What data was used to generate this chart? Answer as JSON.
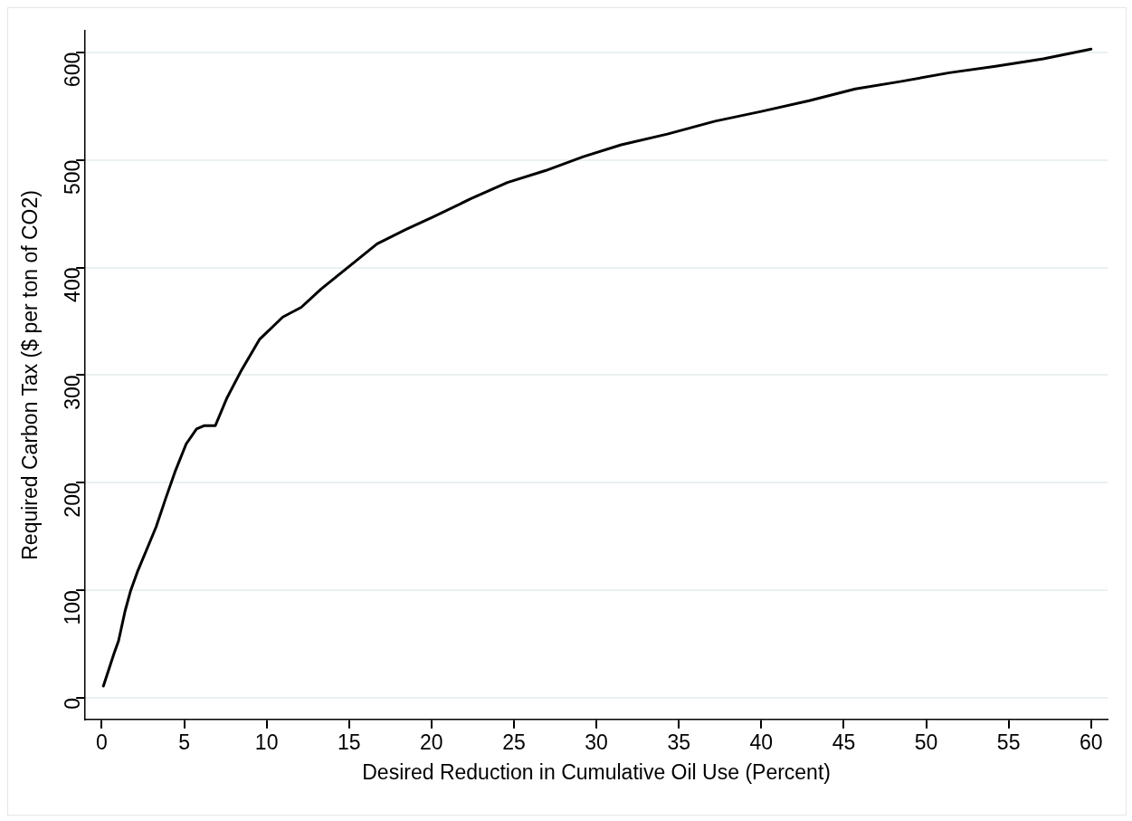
{
  "chart_data": {
    "type": "line",
    "xlabel": "Desired Reduction in Cumulative Oil Use (Percent)",
    "ylabel": "Required Carbon Tax ($ per ton of CO2)",
    "x": [
      0.1,
      0.74,
      1.02,
      1.42,
      1.76,
      2.16,
      2.73,
      3.3,
      3.87,
      4.44,
      5.12,
      5.75,
      6.2,
      6.89,
      7.57,
      8.42,
      9.56,
      10.98,
      12.1,
      13.3,
      15,
      16.7,
      18.4,
      20.1,
      22.4,
      24.6,
      26.9,
      29.2,
      31.5,
      34.3,
      37.2,
      40,
      42.9,
      45.7,
      48.5,
      51.4,
      54.2,
      57.1,
      60
    ],
    "series": [
      {
        "color": "#000000",
        "values": [
          11,
          41,
          53,
          81,
          100,
          117,
          138,
          159,
          185,
          210,
          236,
          250,
          253,
          253,
          278,
          303,
          333,
          354,
          363,
          380,
          401,
          422,
          435,
          447,
          464,
          479,
          490,
          503,
          514,
          524,
          536,
          545,
          555,
          566,
          573,
          581,
          587,
          594,
          603
        ]
      }
    ],
    "xlim": [
      -1,
      61
    ],
    "xticks": [
      0,
      5,
      10,
      15,
      20,
      25,
      30,
      35,
      40,
      45,
      50,
      55,
      60
    ],
    "ylim": [
      -20,
      620
    ],
    "yticks": [
      0,
      100,
      200,
      300,
      400,
      500,
      600
    ],
    "grid": "y",
    "legend": false,
    "marker": "none",
    "line_style": "solid"
  }
}
